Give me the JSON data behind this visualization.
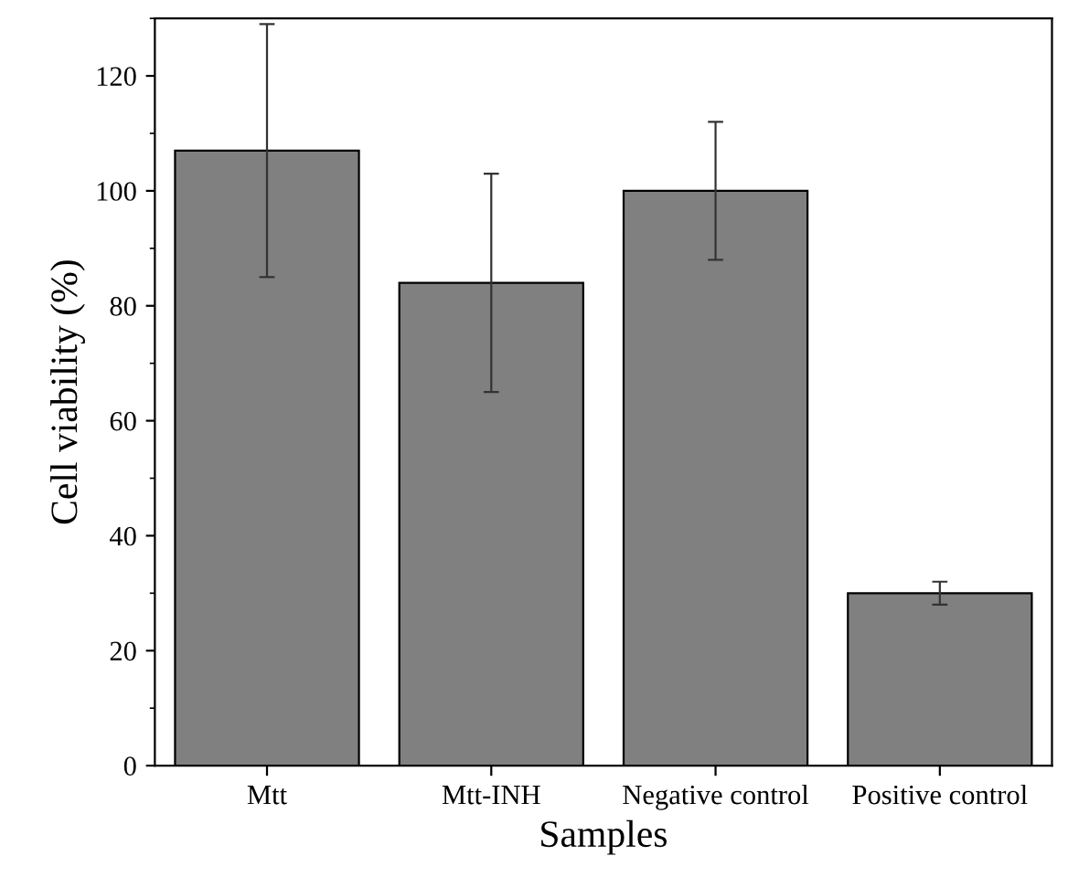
{
  "chart_data": {
    "type": "bar",
    "xlabel": "Samples",
    "ylabel": "Cell viability (%)",
    "categories": [
      "Mtt",
      "Mtt-INH",
      "Negative control",
      "Positive control"
    ],
    "values": [
      107,
      84,
      100,
      30
    ],
    "errors": [
      22,
      19,
      12,
      2
    ],
    "color": "#808080",
    "ylim": [
      0,
      130
    ],
    "yticks": [
      0,
      20,
      40,
      60,
      80,
      100,
      120
    ],
    "grid": false
  }
}
